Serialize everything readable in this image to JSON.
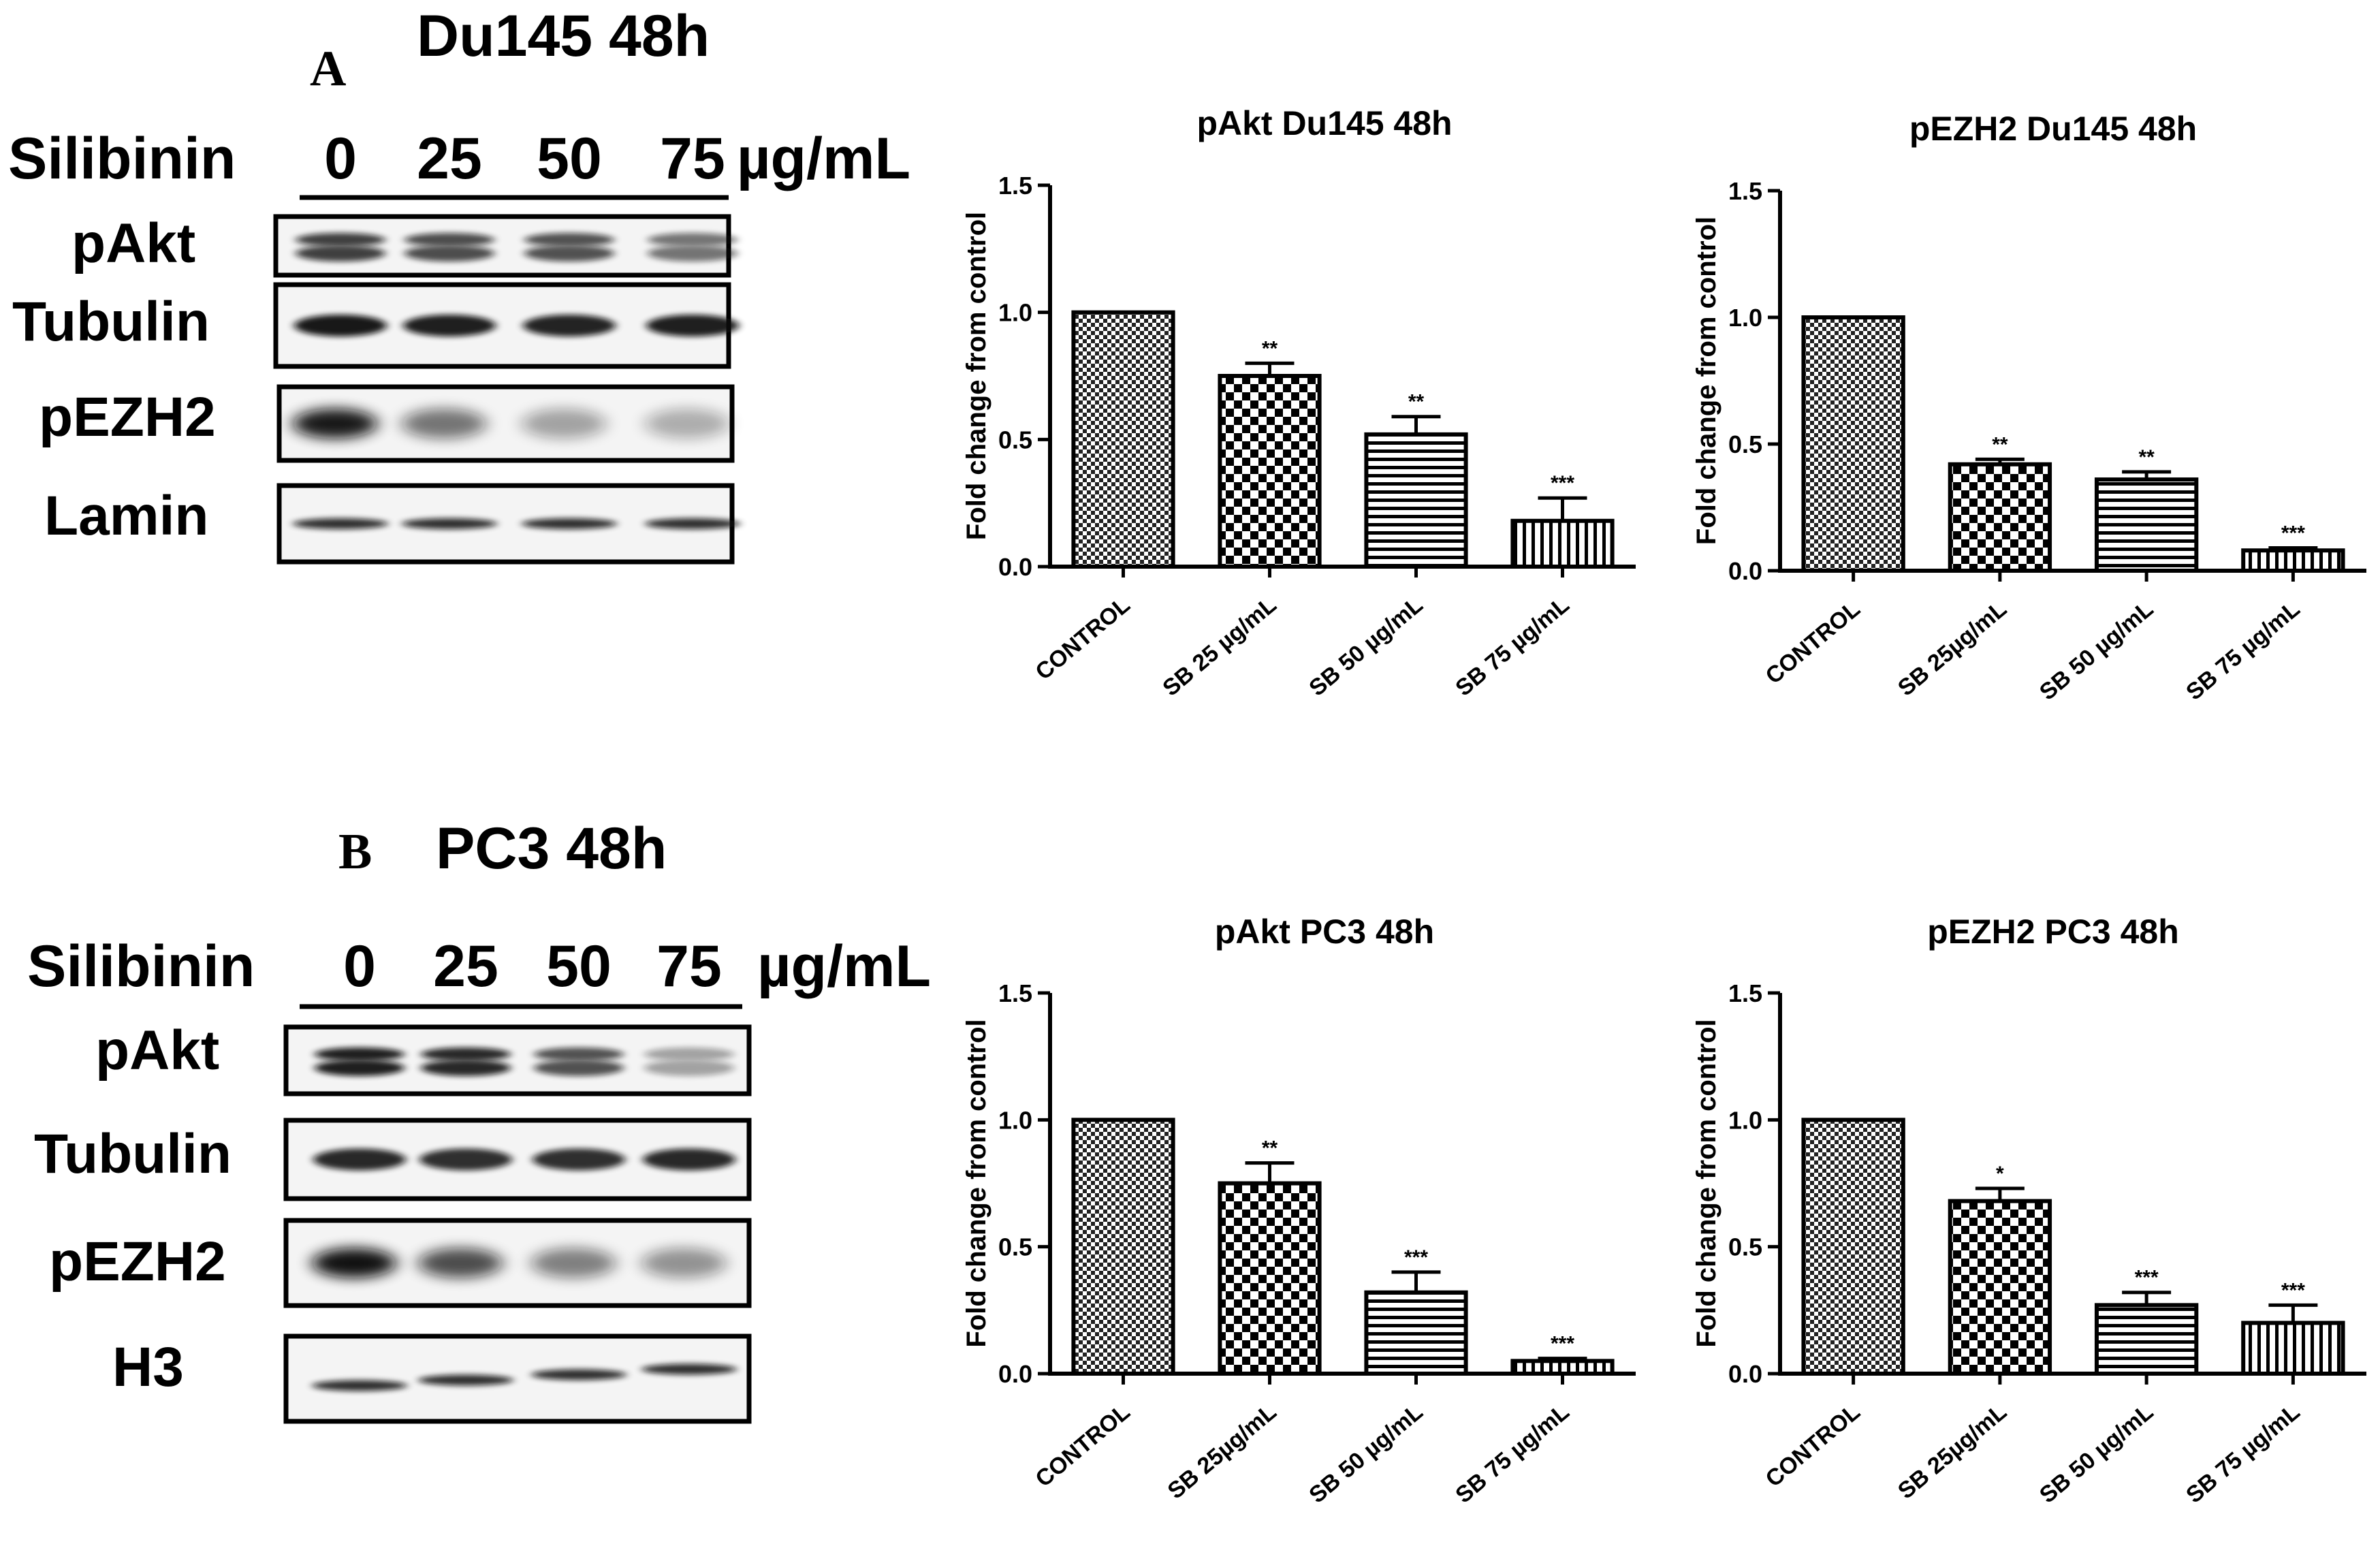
{
  "panels": [
    {
      "letter": "A",
      "title": "Du145 48h",
      "treatment": "Silibinin",
      "doses": [
        "0",
        "25",
        "50",
        "75"
      ],
      "unit": "µg/mL",
      "blots": [
        {
          "label": "pAkt",
          "intensities": [
            0.78,
            0.72,
            0.7,
            0.55
          ],
          "bandType": "doublet"
        },
        {
          "label": "Tubulin",
          "intensities": [
            0.95,
            0.92,
            0.9,
            0.92
          ],
          "bandType": "single"
        },
        {
          "label": "pEZH2",
          "intensities": [
            0.95,
            0.55,
            0.35,
            0.3
          ],
          "bandType": "smear"
        },
        {
          "label": "Lamin",
          "intensities": [
            0.85,
            0.85,
            0.85,
            0.85
          ],
          "bandType": "thin"
        }
      ]
    },
    {
      "letter": "B",
      "title": "PC3 48h",
      "treatment": "Silibinin",
      "doses": [
        "0",
        "25",
        "50",
        "75"
      ],
      "unit": "µg/mL",
      "blots": [
        {
          "label": "pAkt",
          "intensities": [
            0.92,
            0.88,
            0.7,
            0.35
          ],
          "bandType": "doublet"
        },
        {
          "label": "Tubulin",
          "intensities": [
            0.88,
            0.85,
            0.85,
            0.88
          ],
          "bandType": "single"
        },
        {
          "label": "pEZH2",
          "intensities": [
            0.98,
            0.72,
            0.5,
            0.42
          ],
          "bandType": "smear"
        },
        {
          "label": "H3",
          "intensities": [
            0.85,
            0.85,
            0.85,
            0.85
          ],
          "bandType": "thin"
        }
      ]
    }
  ],
  "chart_data": [
    {
      "type": "bar",
      "title": "pAkt Du145 48h",
      "ylabel": "Fold change from control",
      "ylim": [
        0,
        1.5
      ],
      "yticks": [
        "0.0",
        "0.5",
        "1.0",
        "1.5"
      ],
      "categories": [
        "CONTROL",
        "SB 25 µg/mL",
        "SB 50 µg/mL",
        "SB 75 µg/mL"
      ],
      "values": [
        1.0,
        0.75,
        0.52,
        0.18
      ],
      "errors": [
        0,
        0.05,
        0.07,
        0.09
      ],
      "significance": [
        "",
        "**",
        "**",
        "***"
      ]
    },
    {
      "type": "bar",
      "title": "pEZH2 Du145 48h",
      "ylabel": "Fold change from control",
      "ylim": [
        0,
        1.5
      ],
      "yticks": [
        "0.0",
        "0.5",
        "1.0",
        "1.5"
      ],
      "categories": [
        "CONTROL",
        "SB 25µg/mL",
        "SB 50 µg/mL",
        "SB 75 µg/mL"
      ],
      "values": [
        1.0,
        0.42,
        0.36,
        0.08
      ],
      "errors": [
        0,
        0.02,
        0.03,
        0.01
      ],
      "significance": [
        "",
        "**",
        "**",
        "***"
      ]
    },
    {
      "type": "bar",
      "title": "pAkt PC3 48h",
      "ylabel": "Fold change from control",
      "ylim": [
        0,
        1.5
      ],
      "yticks": [
        "0.0",
        "0.5",
        "1.0",
        "1.5"
      ],
      "categories": [
        "CONTROL",
        "SB 25µg/mL",
        "SB 50 µg/mL",
        "SB 75 µg/mL"
      ],
      "values": [
        1.0,
        0.75,
        0.32,
        0.05
      ],
      "errors": [
        0,
        0.08,
        0.08,
        0.01
      ],
      "significance": [
        "",
        "**",
        "***",
        "***"
      ]
    },
    {
      "type": "bar",
      "title": "pEZH2 PC3 48h",
      "ylabel": "Fold change from control",
      "ylim": [
        0,
        1.5
      ],
      "yticks": [
        "0.0",
        "0.5",
        "1.0",
        "1.5"
      ],
      "categories": [
        "CONTROL",
        "SB 25µg/mL",
        "SB 50 µg/mL",
        "SB 75 µg/mL"
      ],
      "values": [
        1.0,
        0.68,
        0.27,
        0.2
      ],
      "errors": [
        0,
        0.05,
        0.05,
        0.07
      ],
      "significance": [
        "*",
        "*",
        "***",
        "***"
      ]
    }
  ]
}
